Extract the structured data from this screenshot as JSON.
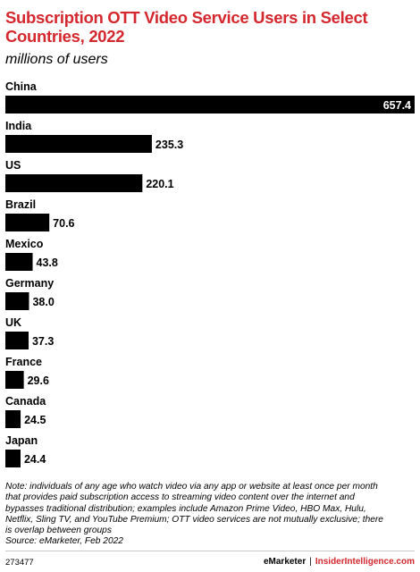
{
  "chart_data": {
    "type": "bar",
    "orientation": "horizontal",
    "title": "Subscription OTT Video Service Users in Select Countries, 2022",
    "subtitle": "millions of users",
    "categories": [
      "China",
      "India",
      "US",
      "Brazil",
      "Mexico",
      "Germany",
      "UK",
      "France",
      "Canada",
      "Japan"
    ],
    "values": [
      657.4,
      235.3,
      220.1,
      70.6,
      43.8,
      38.0,
      37.3,
      29.6,
      24.5,
      24.4
    ],
    "value_labels": [
      "657.4",
      "235.3",
      "220.1",
      "70.6",
      "43.8",
      "38.0",
      "37.3",
      "29.6",
      "24.5",
      "24.4"
    ],
    "bar_color": "#000000",
    "xlim": [
      0,
      657.4
    ],
    "grid": false,
    "legend": "none"
  },
  "note": {
    "lines": [
      "Note: individuals of any age who watch video via any app or website at least once per month",
      "that provides paid subscription access to streaming video content over the internet and",
      "bypasses traditional distribution; examples include Amazon Prime Video, HBO Max, Hulu,",
      "Netflix, Sling TV, and YouTube Premium; OTT video services are not mutually exclusive; there",
      "is overlap between groups",
      "Source: eMarketer, Feb 2022"
    ]
  },
  "footer": {
    "chart_id": "273477",
    "brand": "eMarketer",
    "separator": "|",
    "brand2": "InsiderIntelligence.com"
  },
  "colors": {
    "accent": "#d4272e",
    "bar": "#000000"
  }
}
